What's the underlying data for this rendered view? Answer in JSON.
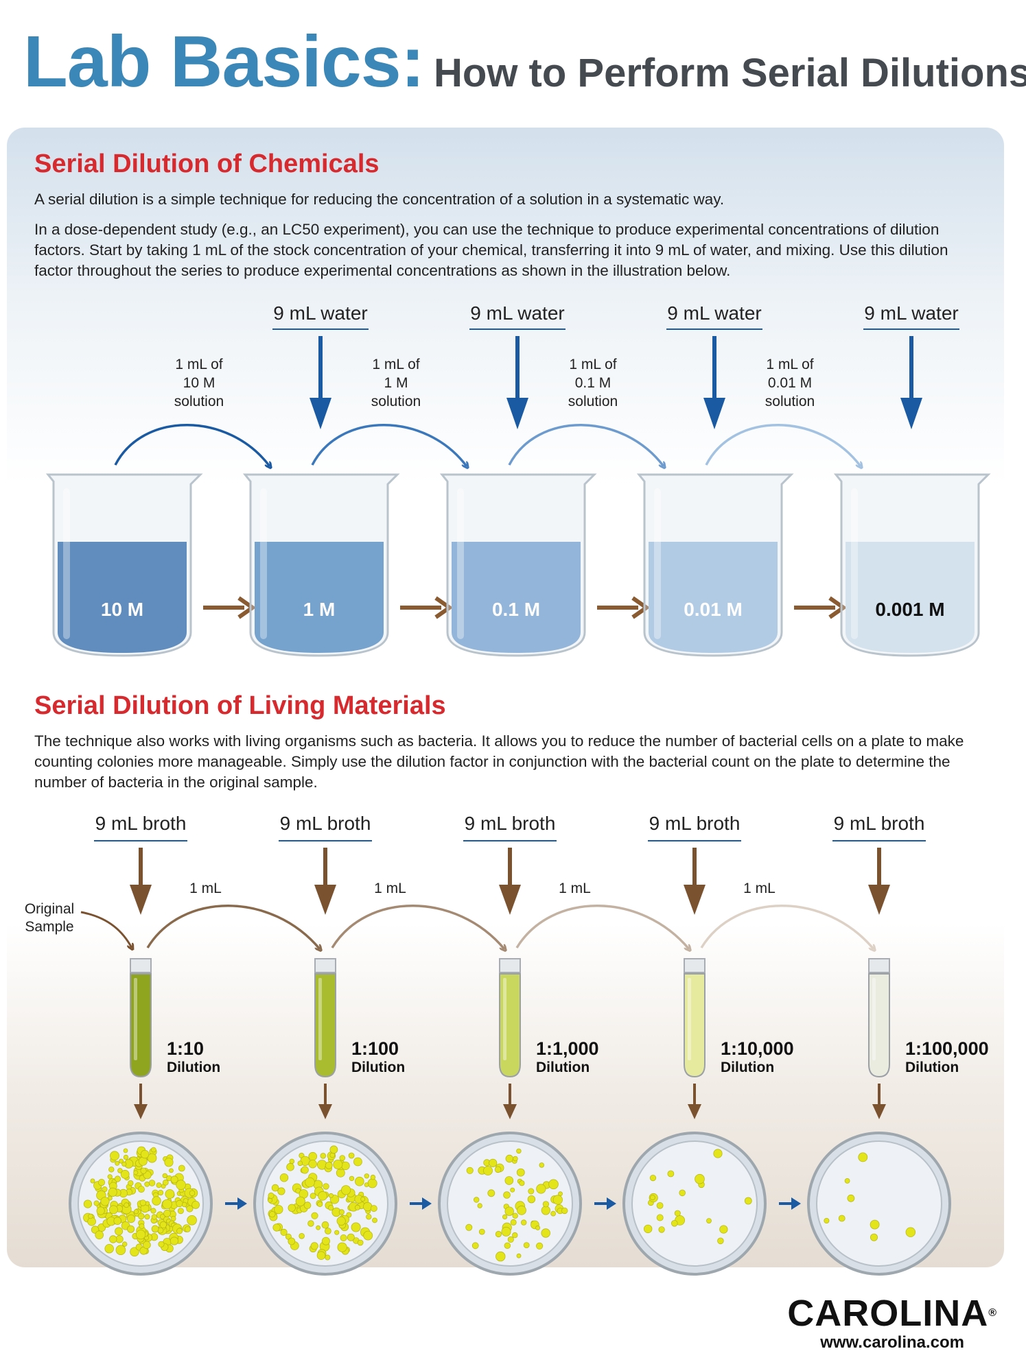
{
  "title": {
    "main": "Lab Basics:",
    "sub": "How to Perform Serial Dilutions"
  },
  "chemicals": {
    "heading": "Serial Dilution of Chemicals",
    "intro": "A serial dilution is a simple technique for reducing the concentration of a solution in a systematic way.",
    "body": "In a dose-dependent study (e.g., an LC50 experiment), you can use the technique to produce experimental concentrations of dilution factors. Start by taking 1 mL of the stock concentration of your chemical, transferring it into 9 mL of water, and mixing. Use this dilution factor throughout the series to produce experimental concentrations as shown in the illustration below.",
    "water_labels": [
      "9 mL water",
      "9 mL water",
      "9 mL water",
      "9 mL water"
    ],
    "transfers": [
      [
        "1 mL of",
        "10 M",
        "solution"
      ],
      [
        "1 mL of",
        "1 M",
        "solution"
      ],
      [
        "1 mL of",
        "0.1 M",
        "solution"
      ],
      [
        "1 mL of",
        "0.01 M",
        "solution"
      ]
    ],
    "beakers": [
      {
        "label": "10 M",
        "color": "#1f5fa6",
        "text_color": "#ffffff"
      },
      {
        "label": "1 M",
        "color": "#3f7fbf",
        "text_color": "#ffffff"
      },
      {
        "label": "0.1 M",
        "color": "#6b9ccf",
        "text_color": "#ffffff"
      },
      {
        "label": "0.01 M",
        "color": "#9bbde0",
        "text_color": "#ffffff"
      },
      {
        "label": "0.001 M",
        "color": "#cfe0ef",
        "text_color": "#111111"
      }
    ],
    "arrow_colors": [
      "#1a5aa3",
      "#3b78bb",
      "#6d9bce",
      "#a3c2e1"
    ]
  },
  "living": {
    "heading": "Serial Dilution of Living Materials",
    "body": "The technique also works with living organisms such as bacteria. It allows you to reduce the number of bacterial cells on a plate to make counting colonies more manageable. Simply use the dilution factor in conjunction with the bacterial count on the plate to determine the number of bacteria in the original sample.",
    "broth_labels": [
      "9 mL broth",
      "9 mL broth",
      "9 mL broth",
      "9 mL broth",
      "9 mL broth"
    ],
    "transfer_label": "1 mL",
    "original_sample": [
      "Original",
      "Sample"
    ],
    "tubes": [
      {
        "ratio": "1:10",
        "word": "Dilution",
        "color": "#8fa520"
      },
      {
        "ratio": "1:100",
        "word": "Dilution",
        "color": "#a9bb2f"
      },
      {
        "ratio": "1:1,000",
        "word": "Dilution",
        "color": "#cad75e"
      },
      {
        "ratio": "1:10,000",
        "word": "Dilution",
        "color": "#e6ea9f"
      },
      {
        "ratio": "1:100,000",
        "word": "Dilution",
        "color": "#e9ecdf"
      }
    ],
    "colony_counts": [
      220,
      130,
      60,
      20,
      8
    ],
    "arc_colors": [
      "#8a6a4c",
      "#a48a72",
      "#c3b2a2",
      "#ddd1c6"
    ]
  },
  "logo": {
    "brand": "CAROLINA",
    "url": "www.carolina.com"
  }
}
